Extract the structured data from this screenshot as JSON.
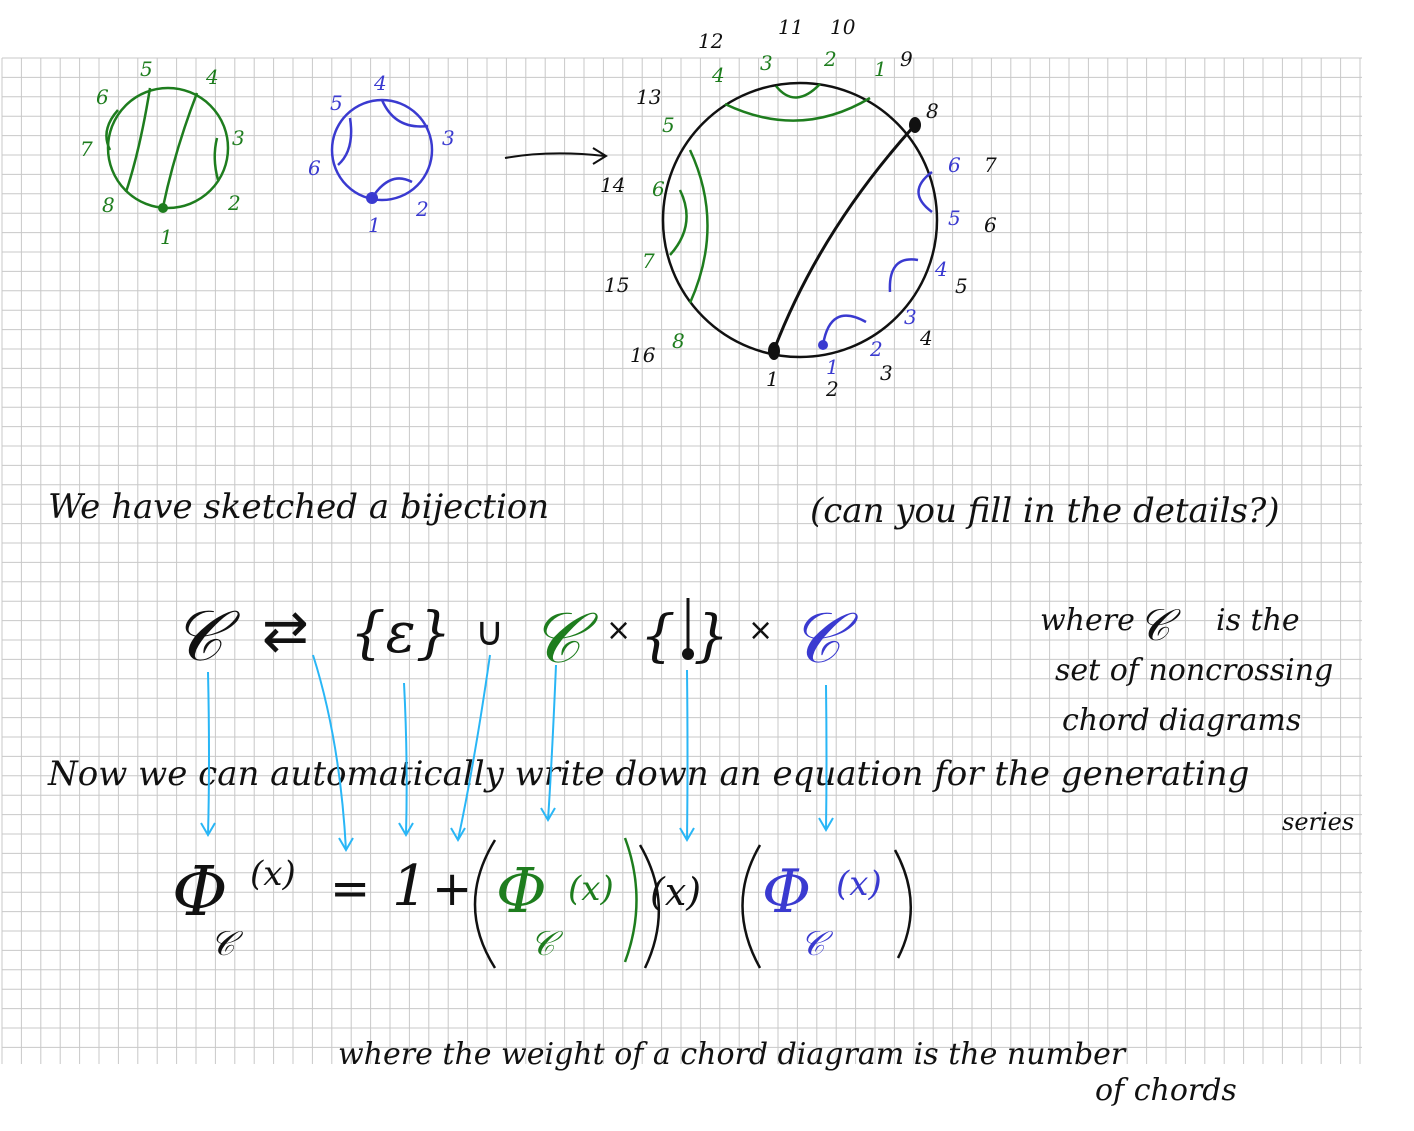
{
  "colors": {
    "grid": "#c8c8c8",
    "green": "#1e7d1e",
    "blue": "#3a3ad0",
    "black": "#111111",
    "arrow": "#29b6f6"
  },
  "diagram_green": {
    "labels": [
      "1",
      "2",
      "3",
      "4",
      "5",
      "6",
      "7",
      "8"
    ]
  },
  "diagram_blue": {
    "labels": [
      "1",
      "2",
      "3",
      "4",
      "5",
      "6"
    ]
  },
  "diagram_big": {
    "outer_labels": [
      "1",
      "2",
      "3",
      "4",
      "5",
      "6",
      "7",
      "8",
      "9",
      "10",
      "11",
      "12",
      "13",
      "14",
      "15",
      "16"
    ],
    "blue_sublabels": [
      "1",
      "2",
      "3",
      "4",
      "5",
      "6"
    ],
    "green_sublabels": [
      "1",
      "2",
      "3",
      "4",
      "5",
      "6",
      "7",
      "8"
    ]
  },
  "text": {
    "line1_a": "We have sketched a bijection",
    "line1_b": "(can you fill in the details?)",
    "where_set_1": "where",
    "where_set_2": "is the",
    "where_set_3": "set of noncrossing",
    "where_set_4": "chord diagrams",
    "line2": "Now we can automatically write down an equation for the generating",
    "series": "series",
    "where_weight_1": "where the weight of a chord diagram is the number",
    "where_weight_2": "of chords"
  },
  "equation_top": {
    "lhs": "𝒞",
    "arrows": "⇄",
    "eps_set": "{ε}",
    "union": "∪",
    "C_green": "𝒞",
    "times1": "×",
    "chord_set": "{ }",
    "times2": "×",
    "C_blue": "𝒞"
  },
  "equation_bottom": {
    "phi": "Φ",
    "sub": "𝒞",
    "arg": "(x)",
    "equals": "=",
    "one": "1",
    "plus": "+",
    "x_factor": "(x)"
  }
}
